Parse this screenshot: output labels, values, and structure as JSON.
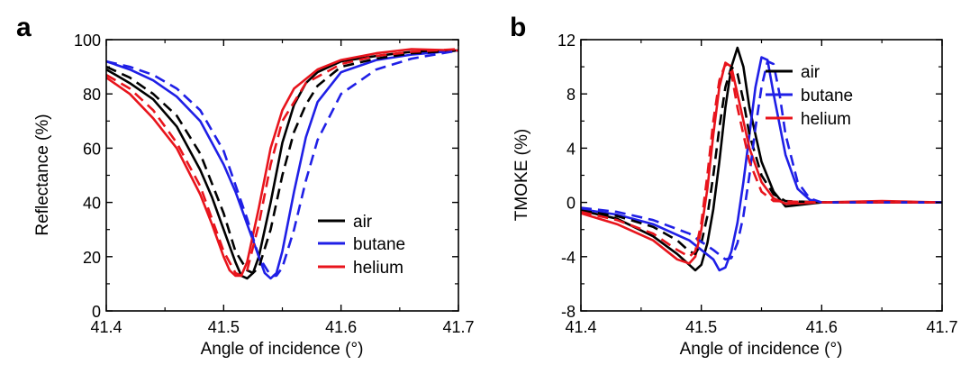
{
  "colors": {
    "air": "#000000",
    "butane": "#1f1fe6",
    "helium": "#e8141c"
  },
  "chart_data": [
    {
      "panel": "a",
      "type": "line",
      "xlabel": "Angle of incidence (°)",
      "ylabel": "Reflectance (%)",
      "xlim": [
        41.4,
        41.7
      ],
      "ylim": [
        0,
        100
      ],
      "xticks": [
        "41.4",
        "41.5",
        "41.6",
        "41.7"
      ],
      "yticks": [
        "0",
        "20",
        "40",
        "60",
        "80",
        "100"
      ],
      "legend_position": "bottom-right",
      "grid": false,
      "series": [
        {
          "name": "air",
          "color_key": "air",
          "style": "solid",
          "x": [
            41.4,
            41.42,
            41.44,
            41.46,
            41.48,
            41.49,
            41.5,
            41.51,
            41.515,
            41.52,
            41.525,
            41.53,
            41.54,
            41.55,
            41.56,
            41.57,
            41.58,
            41.6,
            41.63,
            41.66,
            41.7
          ],
          "y": [
            89,
            84,
            78,
            68,
            52,
            42,
            30,
            18,
            13,
            12,
            14,
            20,
            40,
            62,
            76,
            84,
            88,
            92,
            94,
            95.5,
            96
          ]
        },
        {
          "name": "butane",
          "color_key": "butane",
          "style": "solid",
          "x": [
            41.4,
            41.42,
            41.44,
            41.46,
            41.48,
            41.5,
            41.51,
            41.52,
            41.53,
            41.535,
            41.54,
            41.545,
            41.55,
            41.56,
            41.57,
            41.58,
            41.6,
            41.63,
            41.66,
            41.7
          ],
          "y": [
            92,
            89,
            85,
            79,
            70,
            54,
            44,
            32,
            20,
            14,
            12,
            14,
            22,
            44,
            64,
            77,
            88,
            92.5,
            94.5,
            96
          ]
        },
        {
          "name": "helium",
          "color_key": "helium",
          "style": "solid",
          "x": [
            41.4,
            41.42,
            41.44,
            41.46,
            41.48,
            41.49,
            41.5,
            41.505,
            41.51,
            41.515,
            41.52,
            41.53,
            41.54,
            41.55,
            41.56,
            41.58,
            41.6,
            41.63,
            41.66,
            41.7
          ],
          "y": [
            86,
            80,
            71,
            60,
            43,
            32,
            20,
            15,
            13,
            13,
            18,
            38,
            60,
            74,
            82,
            89,
            92.5,
            95,
            96.5,
            96
          ]
        },
        {
          "name": "",
          "color_key": "air",
          "style": "dashed",
          "x": [
            41.4,
            41.42,
            41.44,
            41.46,
            41.48,
            41.5,
            41.51,
            41.52,
            41.525,
            41.53,
            41.54,
            41.55,
            41.56,
            41.57,
            41.58,
            41.6,
            41.63,
            41.66,
            41.7
          ],
          "y": [
            90,
            86,
            80,
            72,
            58,
            36,
            22,
            15,
            14,
            16,
            30,
            50,
            66,
            76,
            83,
            90,
            93,
            95,
            96
          ]
        },
        {
          "name": "",
          "color_key": "butane",
          "style": "dashed",
          "x": [
            41.4,
            41.42,
            41.44,
            41.46,
            41.48,
            41.5,
            41.52,
            41.53,
            41.54,
            41.545,
            41.55,
            41.56,
            41.57,
            41.58,
            41.6,
            41.63,
            41.66,
            41.7
          ],
          "y": [
            92,
            90,
            87,
            82,
            74,
            59,
            34,
            20,
            13,
            13,
            16,
            30,
            48,
            63,
            80,
            89,
            93,
            96
          ]
        },
        {
          "name": "",
          "color_key": "helium",
          "style": "dashed",
          "x": [
            41.4,
            41.42,
            41.44,
            41.46,
            41.48,
            41.5,
            41.51,
            41.515,
            41.52,
            41.53,
            41.54,
            41.55,
            41.57,
            41.6,
            41.63,
            41.66,
            41.7
          ],
          "y": [
            87,
            82,
            74,
            62,
            46,
            22,
            14,
            13,
            15,
            32,
            54,
            70,
            84,
            91,
            94,
            95.5,
            96.5
          ]
        }
      ]
    },
    {
      "panel": "b",
      "type": "line",
      "xlabel": "Angle of incidence (°)",
      "ylabel": "TMOKE (%)",
      "xlim": [
        41.4,
        41.7
      ],
      "ylim": [
        -8,
        12
      ],
      "xticks": [
        "41.4",
        "41.5",
        "41.6",
        "41.7"
      ],
      "yticks": [
        "-8",
        "-4",
        "0",
        "4",
        "8",
        "12"
      ],
      "legend_position": "top-right",
      "grid": false,
      "series": [
        {
          "name": "air",
          "color_key": "air",
          "style": "solid",
          "x": [
            41.4,
            41.43,
            41.46,
            41.48,
            41.49,
            41.495,
            41.5,
            41.505,
            41.51,
            41.515,
            41.52,
            41.525,
            41.53,
            41.535,
            41.54,
            41.55,
            41.56,
            41.57,
            41.58,
            41.6,
            41.65,
            41.7
          ],
          "y": [
            -0.6,
            -1.2,
            -2.5,
            -3.8,
            -4.6,
            -5.0,
            -4.6,
            -3.0,
            -0.5,
            3.0,
            7.0,
            10.0,
            11.4,
            10.0,
            7.0,
            3.0,
            0.8,
            -0.3,
            -0.2,
            0,
            0,
            0
          ]
        },
        {
          "name": "butane",
          "color_key": "butane",
          "style": "solid",
          "x": [
            41.4,
            41.43,
            41.46,
            41.49,
            41.51,
            41.515,
            41.52,
            41.525,
            41.53,
            41.535,
            41.54,
            41.545,
            41.55,
            41.555,
            41.56,
            41.57,
            41.58,
            41.59,
            41.6,
            41.65,
            41.7
          ],
          "y": [
            -0.5,
            -0.9,
            -1.6,
            -2.8,
            -4.2,
            -5.0,
            -4.8,
            -3.6,
            -1.5,
            1.5,
            5.0,
            8.5,
            10.7,
            10.5,
            8.0,
            3.5,
            1.0,
            0.2,
            0,
            0,
            0
          ]
        },
        {
          "name": "helium",
          "color_key": "helium",
          "style": "solid",
          "x": [
            41.4,
            41.43,
            41.46,
            41.48,
            41.49,
            41.495,
            41.5,
            41.505,
            41.51,
            41.515,
            41.52,
            41.525,
            41.53,
            41.54,
            41.55,
            41.56,
            41.57,
            41.6,
            41.65,
            41.7
          ],
          "y": [
            -0.8,
            -1.6,
            -2.8,
            -4.2,
            -4.5,
            -4.0,
            -2.0,
            1.0,
            5.0,
            8.5,
            10.3,
            10.0,
            8.0,
            4.0,
            1.5,
            0.3,
            -0.1,
            0,
            0.1,
            0
          ]
        },
        {
          "name": "",
          "color_key": "air",
          "style": "dashed",
          "x": [
            41.4,
            41.43,
            41.46,
            41.48,
            41.49,
            41.495,
            41.5,
            41.505,
            41.51,
            41.515,
            41.52,
            41.525,
            41.53,
            41.535,
            41.54,
            41.55,
            41.56,
            41.57,
            41.6,
            41.7
          ],
          "y": [
            -0.6,
            -1.0,
            -1.8,
            -2.8,
            -3.6,
            -3.8,
            -3.0,
            -1.0,
            2.0,
            5.5,
            8.5,
            10.0,
            9.5,
            7.5,
            5.0,
            2.0,
            0.6,
            0.1,
            0,
            0
          ]
        },
        {
          "name": "",
          "color_key": "butane",
          "style": "dashed",
          "x": [
            41.4,
            41.43,
            41.46,
            41.49,
            41.51,
            41.52,
            41.525,
            41.53,
            41.535,
            41.54,
            41.545,
            41.55,
            41.555,
            41.56,
            41.565,
            41.57,
            41.58,
            41.59,
            41.6,
            41.7
          ],
          "y": [
            -0.4,
            -0.7,
            -1.3,
            -2.3,
            -3.5,
            -4.2,
            -4.1,
            -3.0,
            -1.0,
            2.0,
            5.5,
            8.5,
            10.4,
            10.2,
            8.0,
            5.0,
            1.5,
            0.3,
            0,
            0
          ]
        },
        {
          "name": "",
          "color_key": "helium",
          "style": "dashed",
          "x": [
            41.4,
            41.43,
            41.46,
            41.48,
            41.49,
            41.495,
            41.5,
            41.505,
            41.51,
            41.515,
            41.52,
            41.525,
            41.53,
            41.54,
            41.55,
            41.56,
            41.6,
            41.7
          ],
          "y": [
            -0.7,
            -1.3,
            -2.3,
            -3.5,
            -4.0,
            -3.6,
            -1.5,
            2.0,
            6.0,
            9.0,
            10.2,
            9.5,
            7.0,
            3.0,
            0.8,
            0.1,
            0,
            0
          ]
        }
      ]
    }
  ]
}
